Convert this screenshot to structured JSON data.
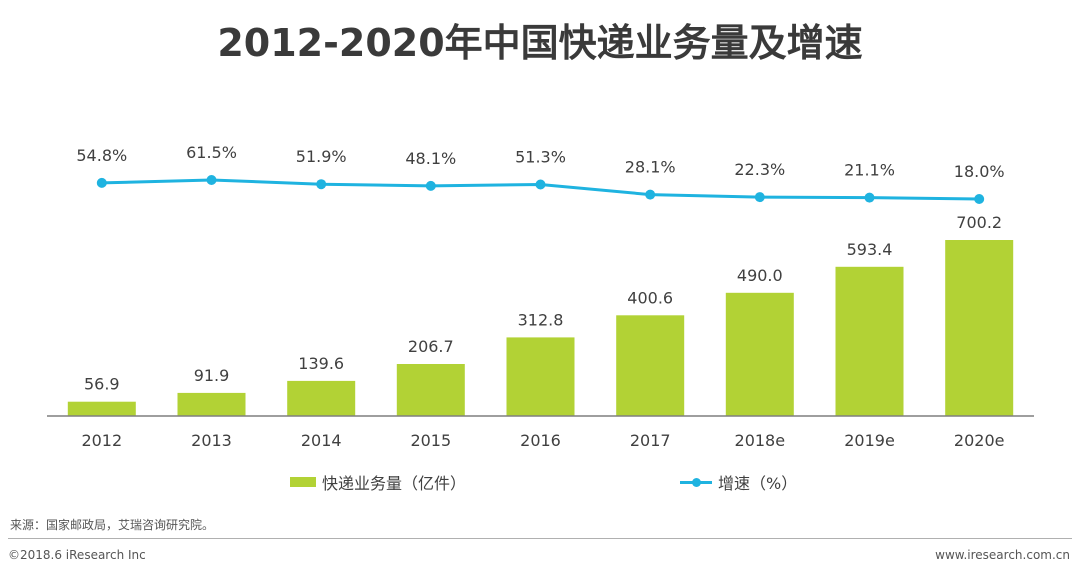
{
  "title": "2012-2020年中国快递业务量及增速",
  "chart_data": {
    "type": "bar",
    "title": "2012-2020年中国快递业务量及增速",
    "categories": [
      "2012",
      "2013",
      "2014",
      "2015",
      "2016",
      "2017",
      "2018e",
      "2019e",
      "2020e"
    ],
    "series": [
      {
        "name": "快递业务量（亿件）",
        "type": "bar",
        "values": [
          56.9,
          91.9,
          139.6,
          206.7,
          312.8,
          400.6,
          490.0,
          593.4,
          700.2
        ],
        "labels": [
          "56.9",
          "91.9",
          "139.6",
          "206.7",
          "312.8",
          "400.6",
          "490.0",
          "593.4",
          "700.2"
        ],
        "color": "#b2d235"
      },
      {
        "name": "增速（%）",
        "type": "line",
        "values": [
          54.8,
          61.5,
          51.9,
          48.1,
          51.3,
          28.1,
          22.3,
          21.1,
          18.0
        ],
        "labels": [
          "54.8%",
          "61.5%",
          "51.9%",
          "48.1%",
          "51.3%",
          "28.1%",
          "22.3%",
          "21.1%",
          "18.0%"
        ],
        "color": "#1fb3e0"
      }
    ],
    "xlabel": "",
    "ylabel": "",
    "legend_position": "bottom"
  },
  "legend": {
    "bar_label": "快递业务量（亿件）",
    "line_label": "增速（%）"
  },
  "footer": {
    "source": "来源：国家邮政局，艾瑞咨询研究院。",
    "copyright": "©2018.6 iResearch Inc",
    "website": "www.iresearch.com.cn"
  },
  "colors": {
    "bar": "#b2d235",
    "line": "#1fb3e0",
    "axis": "#7f7f7f",
    "text": "#404040"
  }
}
